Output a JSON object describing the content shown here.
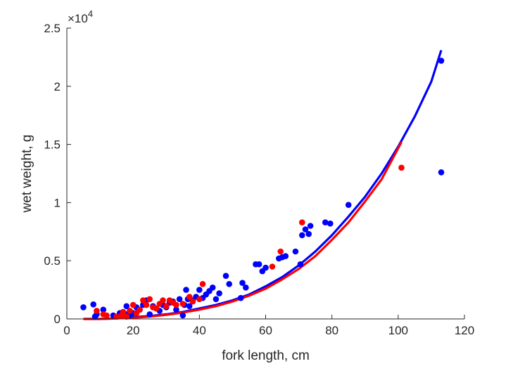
{
  "chart_data": {
    "type": "scatter",
    "xlabel": "fork length, cm",
    "ylabel": "wet weight, g",
    "xlim": [
      0,
      120
    ],
    "ylim": [
      0,
      25000
    ],
    "xticks": [
      0,
      20,
      40,
      60,
      80,
      100,
      120
    ],
    "yticks": [
      0,
      5000,
      10000,
      15000,
      20000,
      25000
    ],
    "ytick_labels": [
      "0",
      "0.5",
      "1",
      "1.5",
      "2",
      "2.5"
    ],
    "y_exponent": "×10",
    "y_exponent_power": "4",
    "grid": false,
    "series": [
      {
        "kind": "points",
        "color": "#0000ff",
        "x": [
          5,
          8,
          8.5,
          9,
          11,
          14,
          16,
          17,
          18,
          18,
          19,
          20,
          21,
          22,
          23,
          24,
          25,
          26,
          27,
          28,
          29,
          30,
          31,
          32,
          33,
          34,
          35,
          35.5,
          36,
          36.5,
          37,
          38,
          39,
          40,
          41,
          42,
          43,
          44,
          45,
          46,
          48,
          49,
          52.5,
          53,
          54,
          57,
          58,
          59,
          60,
          64,
          65,
          66,
          69,
          70.5,
          71,
          72,
          73,
          73.5,
          78,
          79.5,
          85,
          113,
          113
        ],
        "y": [
          1000,
          1250,
          200,
          400,
          800,
          300,
          500,
          600,
          400,
          1100,
          300,
          500,
          1000,
          800,
          1200,
          1600,
          400,
          1100,
          900,
          700,
          1200,
          1000,
          1400,
          1500,
          800,
          1700,
          300,
          1200,
          2500,
          1700,
          1100,
          1600,
          1900,
          2500,
          1800,
          2100,
          2400,
          2700,
          1700,
          2200,
          3700,
          3000,
          1800,
          3100,
          2700,
          4700,
          4700,
          4100,
          4400,
          5200,
          5300,
          5400,
          5800,
          4700,
          7200,
          7700,
          7300,
          8000,
          8300,
          8200,
          9800,
          22200,
          12600
        ]
      },
      {
        "kind": "points",
        "color": "#ff0000",
        "x": [
          9,
          11,
          12,
          15,
          16.5,
          17,
          18,
          19,
          20,
          21,
          22,
          23,
          24,
          25,
          26,
          27,
          28,
          29,
          30,
          31,
          32,
          33,
          35,
          37,
          38,
          40,
          41,
          62,
          64.5,
          71,
          101
        ],
        "y": [
          700,
          400,
          300,
          200,
          300,
          600,
          200,
          700,
          1200,
          500,
          800,
          1600,
          1200,
          1700,
          1000,
          900,
          1300,
          1600,
          1100,
          1600,
          1400,
          1200,
          1300,
          1900,
          1500,
          1700,
          3000,
          4500,
          5800,
          8300,
          13000
        ]
      },
      {
        "kind": "curve",
        "color": "#0000ff",
        "x": [
          5,
          10,
          15,
          20,
          25,
          30,
          35,
          40,
          45,
          50,
          55,
          60,
          65,
          70,
          75,
          80,
          85,
          90,
          95,
          100,
          105,
          110,
          113
        ],
        "y": [
          0,
          0,
          50,
          150,
          250,
          400,
          600,
          900,
          1200,
          1600,
          2100,
          2800,
          3600,
          4600,
          5800,
          7200,
          8800,
          10500,
          12500,
          14800,
          17400,
          20400,
          23100
        ]
      },
      {
        "kind": "curve",
        "color": "#ff0000",
        "x": [
          5,
          10,
          15,
          20,
          25,
          30,
          35,
          40,
          45,
          50,
          55,
          60,
          65,
          70,
          75,
          80,
          85,
          90,
          95,
          101
        ],
        "y": [
          0,
          0,
          50,
          100,
          200,
          350,
          550,
          800,
          1100,
          1500,
          2000,
          2600,
          3400,
          4300,
          5400,
          6800,
          8300,
          10100,
          12000,
          15200
        ]
      }
    ]
  }
}
